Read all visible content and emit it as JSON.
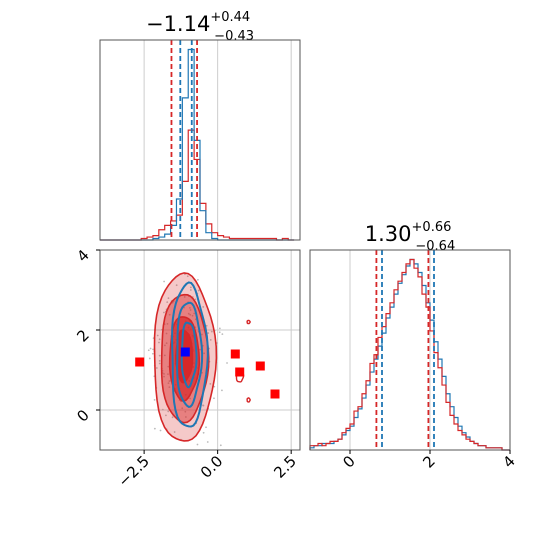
{
  "chart_data": {
    "type": "corner",
    "grid": true,
    "colors": {
      "series_a": "#d62728",
      "series_b": "#1f77b4",
      "marker_truth": "#0000ff",
      "markers_other": "#ff0000",
      "grid": "#cccccc",
      "scatter": "#bbbbbb"
    },
    "series": [
      {
        "color_key": "series_a"
      },
      {
        "color_key": "series_b"
      }
    ],
    "params": [
      {
        "title_main": "−1.14",
        "title_plus": "+0.44",
        "title_minus": "−0.43",
        "range": [
          -4.0,
          2.8
        ],
        "ticks": [
          -2.5,
          0.0,
          2.5
        ],
        "tick_labels": [
          "−2.5",
          "0.0",
          "2.5"
        ],
        "quantiles_a": [
          -1.57,
          -0.7
        ],
        "quantiles_b": [
          -1.27,
          -0.88
        ],
        "hist_bin_edges": [
          -4.0,
          -3.8,
          -3.6,
          -3.4,
          -3.2,
          -3.0,
          -2.8,
          -2.6,
          -2.4,
          -2.2,
          -2.0,
          -1.8,
          -1.6,
          -1.4,
          -1.2,
          -1.0,
          -0.8,
          -0.6,
          -0.4,
          -0.2,
          0.0,
          0.2,
          0.4,
          0.6,
          0.8,
          1.0,
          1.2,
          1.4,
          1.6,
          1.8,
          2.0,
          2.2,
          2.4,
          2.6
        ],
        "hist_a": [
          0,
          0,
          0,
          0,
          0,
          0,
          0,
          1,
          2,
          3,
          7,
          10,
          13,
          17,
          40,
          75,
          55,
          25,
          11,
          5,
          3,
          2,
          1,
          1,
          1,
          1,
          1,
          1,
          1,
          1,
          0,
          1,
          0
        ],
        "hist_b": [
          0,
          0,
          0,
          0,
          0,
          0,
          0,
          0,
          0,
          1,
          2,
          4,
          10,
          28,
          97,
          130,
          68,
          20,
          5,
          1,
          0,
          0,
          0,
          0,
          0,
          0,
          0,
          0,
          0,
          0,
          0,
          0,
          0
        ]
      },
      {
        "title_main": "1.30",
        "title_plus": "+0.66",
        "title_minus": "−0.64",
        "range": [
          -1.0,
          4.0
        ],
        "ticks": [
          0,
          2,
          4
        ],
        "tick_labels": [
          "0",
          "2",
          "4"
        ],
        "quantiles_a": [
          0.66,
          1.96
        ],
        "quantiles_b": [
          0.8,
          2.1
        ],
        "hist_bin_edges": [
          -1.0,
          -0.9,
          -0.8,
          -0.7,
          -0.6,
          -0.5,
          -0.4,
          -0.3,
          -0.2,
          -0.1,
          0.0,
          0.1,
          0.2,
          0.3,
          0.4,
          0.5,
          0.6,
          0.7,
          0.8,
          0.9,
          1.0,
          1.1,
          1.2,
          1.3,
          1.4,
          1.5,
          1.6,
          1.7,
          1.8,
          1.9,
          2.0,
          2.1,
          2.2,
          2.3,
          2.4,
          2.5,
          2.6,
          2.7,
          2.8,
          2.9,
          3.0,
          3.1,
          3.2,
          3.3,
          3.4,
          3.5,
          3.6,
          3.7,
          3.8,
          3.9,
          4.0
        ],
        "hist_a": [
          2,
          2,
          3,
          2,
          3,
          4,
          4,
          5,
          8,
          10,
          12,
          18,
          20,
          26,
          32,
          40,
          44,
          52,
          57,
          63,
          68,
          74,
          78,
          82,
          86,
          88,
          84,
          80,
          72,
          66,
          55,
          45,
          38,
          30,
          22,
          16,
          12,
          9,
          7,
          5,
          4,
          3,
          2,
          2,
          1,
          1,
          1,
          1,
          0,
          0
        ],
        "hist_b": [
          1,
          2,
          2,
          3,
          3,
          3,
          4,
          5,
          7,
          9,
          11,
          15,
          19,
          24,
          30,
          36,
          42,
          48,
          54,
          61,
          66,
          72,
          77,
          81,
          85,
          88,
          86,
          82,
          76,
          68,
          60,
          50,
          42,
          34,
          26,
          20,
          15,
          11,
          8,
          6,
          4,
          3,
          2,
          2,
          1,
          1,
          1,
          1,
          0,
          0
        ]
      }
    ],
    "joint": {
      "contours_a": [
        {
          "level": 1,
          "cx": -1.14,
          "cy": 1.3,
          "rx": 1.05,
          "ry": 2.1,
          "fill_opacity": 0.25
        },
        {
          "level": 2,
          "cx": -1.14,
          "cy": 1.3,
          "rx": 0.8,
          "ry": 1.6,
          "fill_opacity": 0.45
        },
        {
          "level": 3,
          "cx": -1.14,
          "cy": 1.3,
          "rx": 0.5,
          "ry": 1.05,
          "fill_opacity": 0.7
        },
        {
          "level": 4,
          "cx": -1.14,
          "cy": 1.35,
          "rx": 0.28,
          "ry": 0.65,
          "fill_opacity": 0.95
        }
      ],
      "contours_b": [
        {
          "level": 1,
          "cx": -0.98,
          "cy": 1.35,
          "rx": 0.6,
          "ry": 1.8
        },
        {
          "level": 2,
          "cx": -0.98,
          "cy": 1.4,
          "rx": 0.42,
          "ry": 1.3
        },
        {
          "level": 3,
          "cx": -0.98,
          "cy": 1.4,
          "rx": 0.25,
          "ry": 0.8
        }
      ],
      "isolated_contours_a": [
        {
          "cx": 0.75,
          "cy": 0.85,
          "rx": 0.12,
          "ry": 0.15
        },
        {
          "cx": 1.05,
          "cy": 0.25,
          "rx": 0.05,
          "ry": 0.05
        },
        {
          "cx": 1.05,
          "cy": 2.2,
          "rx": 0.05,
          "ry": 0.04
        }
      ],
      "markers_other": [
        {
          "x": -2.65,
          "y": 1.2
        },
        {
          "x": 0.6,
          "y": 1.4
        },
        {
          "x": 0.75,
          "y": 0.95
        },
        {
          "x": 1.45,
          "y": 1.1
        },
        {
          "x": 1.95,
          "y": 0.4
        }
      ],
      "marker_truth": {
        "x": -1.1,
        "y": 1.45
      }
    }
  }
}
